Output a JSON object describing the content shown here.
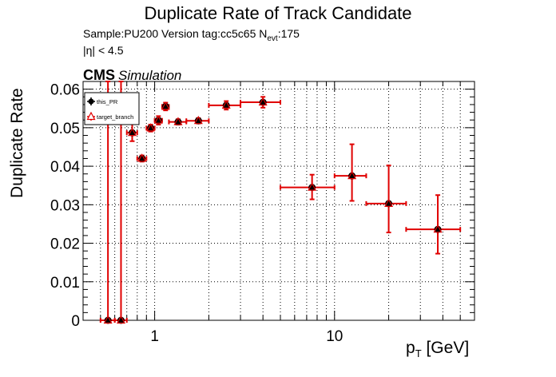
{
  "header": {
    "title": "Duplicate Rate of Track Candidate",
    "sample_line_prefix": "Sample:PU200   Version tag:cc5c65  N",
    "sample_line_sub": "evt",
    "sample_line_suffix": ":175",
    "eta_line": "|η| < 4.5",
    "cms_label": "CMS",
    "cms_sub": "Simulation"
  },
  "chart_data": {
    "type": "scatter",
    "title": "Duplicate Rate of Track Candidate",
    "xlabel_main": "p",
    "xlabel_sub": "T",
    "xlabel_unit": " [GeV]",
    "ylabel": "Duplicate Rate",
    "x_scale": "log",
    "xlim": [
      0.4,
      60
    ],
    "ylim": [
      0,
      0.062
    ],
    "grid": true,
    "legend_position": "top-left",
    "y_ticks": [
      {
        "value": 0,
        "label": "0"
      },
      {
        "value": 0.01,
        "label": "0.01"
      },
      {
        "value": 0.02,
        "label": "0.02"
      },
      {
        "value": 0.03,
        "label": "0.03"
      },
      {
        "value": 0.04,
        "label": "0.04"
      },
      {
        "value": 0.05,
        "label": "0.05"
      },
      {
        "value": 0.06,
        "label": "0.06"
      }
    ],
    "x_ticks": [
      {
        "value": 1,
        "label": "1"
      },
      {
        "value": 10,
        "label": "10"
      }
    ],
    "series": [
      {
        "name": "this_PR",
        "color": "#000000",
        "marker": "circle",
        "points": [
          {
            "x": 0.55,
            "xlo": 0.5,
            "xhi": 0.6,
            "y": 0.0,
            "ylo": 0.0,
            "yhi": 0.062
          },
          {
            "x": 0.65,
            "xlo": 0.6,
            "xhi": 0.7,
            "y": 0.0,
            "ylo": 0.0,
            "yhi": 0.062
          },
          {
            "x": 0.75,
            "xlo": 0.7,
            "xhi": 0.8,
            "y": 0.0487,
            "ylo": 0.0465,
            "yhi": 0.051
          },
          {
            "x": 0.85,
            "xlo": 0.8,
            "xhi": 0.9,
            "y": 0.042,
            "ylo": 0.0412,
            "yhi": 0.0428
          },
          {
            "x": 0.95,
            "xlo": 0.9,
            "xhi": 1.0,
            "y": 0.0499,
            "ylo": 0.049,
            "yhi": 0.0508
          },
          {
            "x": 1.05,
            "xlo": 1.0,
            "xhi": 1.1,
            "y": 0.0519,
            "ylo": 0.0508,
            "yhi": 0.053
          },
          {
            "x": 1.15,
            "xlo": 1.1,
            "xhi": 1.2,
            "y": 0.0555,
            "ylo": 0.0545,
            "yhi": 0.0565
          },
          {
            "x": 1.35,
            "xlo": 1.2,
            "xhi": 1.5,
            "y": 0.0515,
            "ylo": 0.0508,
            "yhi": 0.0522
          },
          {
            "x": 1.75,
            "xlo": 1.5,
            "xhi": 2.0,
            "y": 0.0518,
            "ylo": 0.0511,
            "yhi": 0.0525
          },
          {
            "x": 2.5,
            "xlo": 2.0,
            "xhi": 3.0,
            "y": 0.0558,
            "ylo": 0.0547,
            "yhi": 0.0569
          },
          {
            "x": 4.0,
            "xlo": 3.0,
            "xhi": 5.0,
            "y": 0.0566,
            "ylo": 0.0552,
            "yhi": 0.058
          },
          {
            "x": 7.5,
            "xlo": 5.0,
            "xhi": 10.0,
            "y": 0.0345,
            "ylo": 0.0314,
            "yhi": 0.0378
          },
          {
            "x": 12.5,
            "xlo": 10.0,
            "xhi": 15.0,
            "y": 0.0375,
            "ylo": 0.031,
            "yhi": 0.0457
          },
          {
            "x": 20.0,
            "xlo": 15.0,
            "xhi": 25.0,
            "y": 0.0303,
            "ylo": 0.0228,
            "yhi": 0.0402
          },
          {
            "x": 37.5,
            "xlo": 25.0,
            "xhi": 50.0,
            "y": 0.0236,
            "ylo": 0.0173,
            "yhi": 0.0325
          }
        ]
      },
      {
        "name": "target_branch",
        "color": "#e00000",
        "marker": "triangle",
        "points": [
          {
            "x": 0.55,
            "xlo": 0.5,
            "xhi": 0.6,
            "y": 0.0,
            "ylo": 0.0,
            "yhi": 0.062
          },
          {
            "x": 0.65,
            "xlo": 0.6,
            "xhi": 0.7,
            "y": 0.0,
            "ylo": 0.0,
            "yhi": 0.062
          },
          {
            "x": 0.75,
            "xlo": 0.7,
            "xhi": 0.8,
            "y": 0.0487,
            "ylo": 0.0465,
            "yhi": 0.051
          },
          {
            "x": 0.85,
            "xlo": 0.8,
            "xhi": 0.9,
            "y": 0.042,
            "ylo": 0.0412,
            "yhi": 0.0428
          },
          {
            "x": 0.95,
            "xlo": 0.9,
            "xhi": 1.0,
            "y": 0.0499,
            "ylo": 0.049,
            "yhi": 0.0508
          },
          {
            "x": 1.05,
            "xlo": 1.0,
            "xhi": 1.1,
            "y": 0.0519,
            "ylo": 0.0508,
            "yhi": 0.053
          },
          {
            "x": 1.15,
            "xlo": 1.1,
            "xhi": 1.2,
            "y": 0.0555,
            "ylo": 0.0545,
            "yhi": 0.0565
          },
          {
            "x": 1.35,
            "xlo": 1.2,
            "xhi": 1.5,
            "y": 0.0515,
            "ylo": 0.0508,
            "yhi": 0.0522
          },
          {
            "x": 1.75,
            "xlo": 1.5,
            "xhi": 2.0,
            "y": 0.0518,
            "ylo": 0.0511,
            "yhi": 0.0525
          },
          {
            "x": 2.5,
            "xlo": 2.0,
            "xhi": 3.0,
            "y": 0.0558,
            "ylo": 0.0547,
            "yhi": 0.0569
          },
          {
            "x": 4.0,
            "xlo": 3.0,
            "xhi": 5.0,
            "y": 0.0566,
            "ylo": 0.0552,
            "yhi": 0.058
          },
          {
            "x": 7.5,
            "xlo": 5.0,
            "xhi": 10.0,
            "y": 0.0345,
            "ylo": 0.0314,
            "yhi": 0.0378
          },
          {
            "x": 12.5,
            "xlo": 10.0,
            "xhi": 15.0,
            "y": 0.0375,
            "ylo": 0.031,
            "yhi": 0.0457
          },
          {
            "x": 20.0,
            "xlo": 15.0,
            "xhi": 25.0,
            "y": 0.0303,
            "ylo": 0.0228,
            "yhi": 0.0402
          },
          {
            "x": 37.5,
            "xlo": 25.0,
            "xhi": 50.0,
            "y": 0.0236,
            "ylo": 0.0173,
            "yhi": 0.0325
          }
        ]
      }
    ]
  }
}
